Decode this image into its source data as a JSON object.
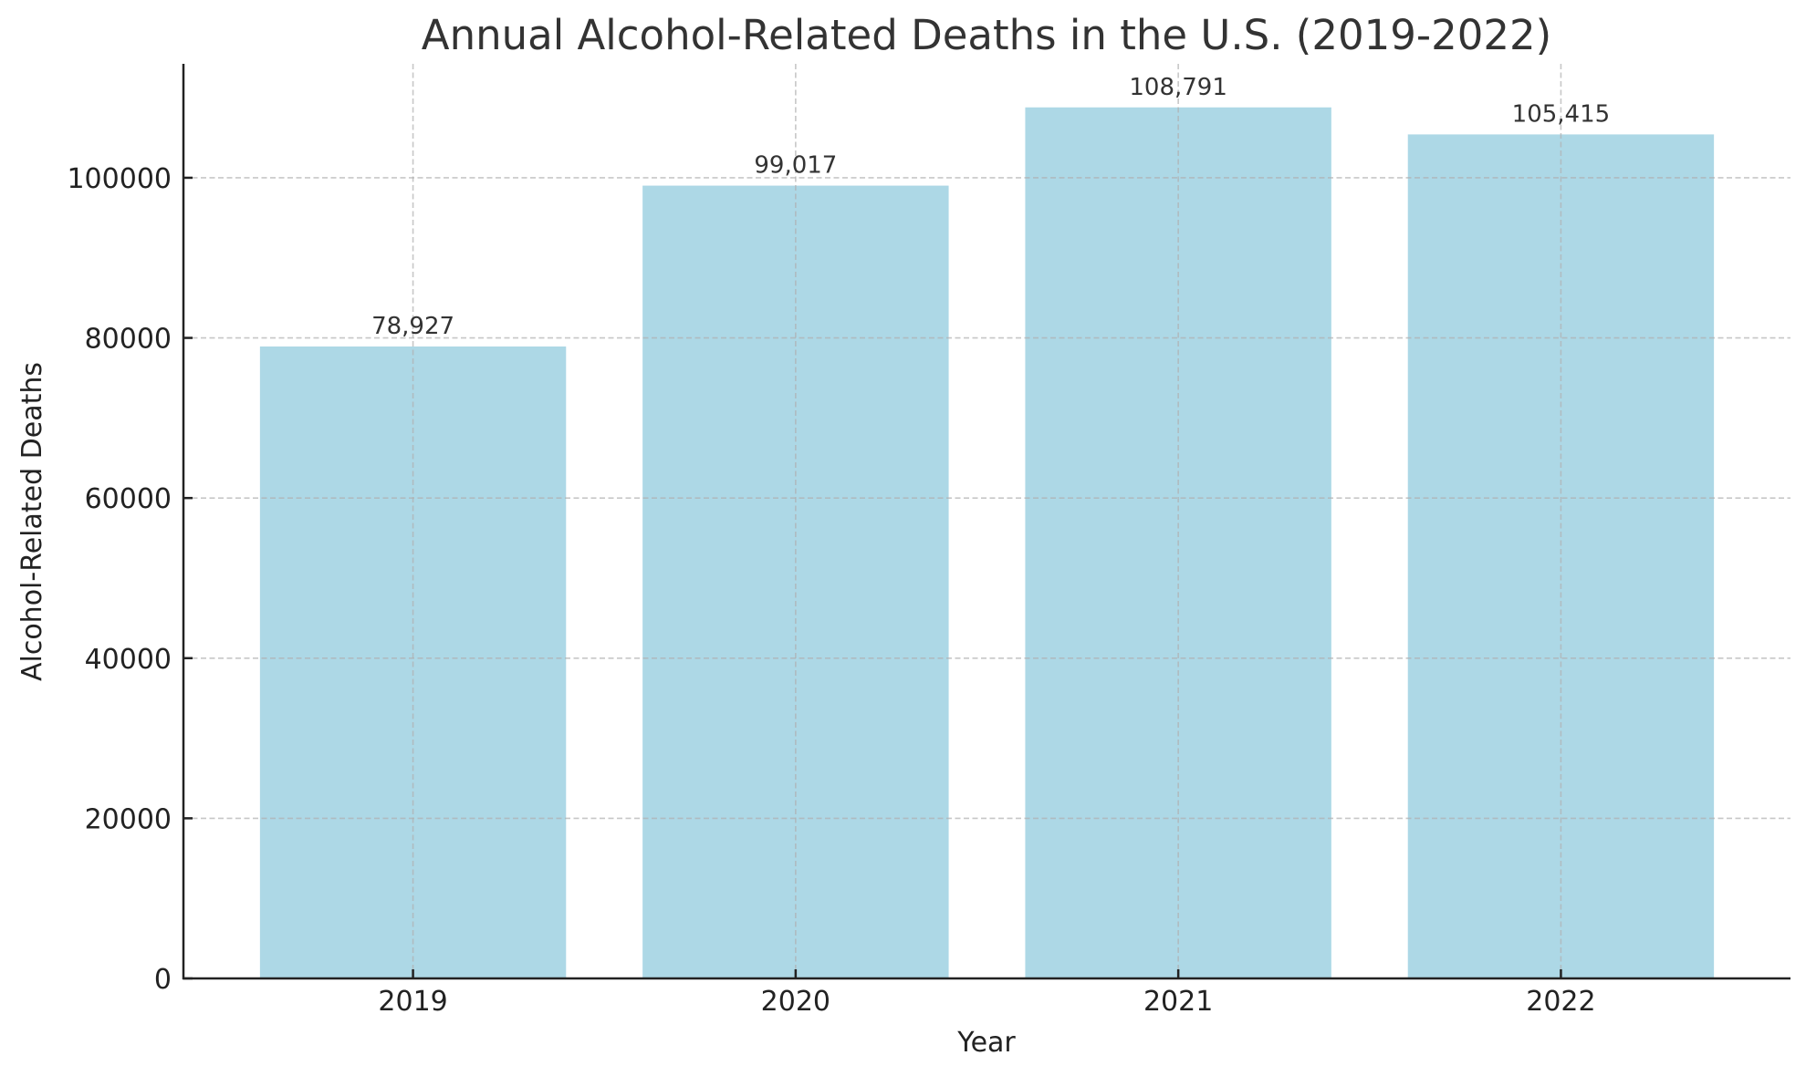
{
  "chart_data": {
    "type": "bar",
    "title": "Annual Alcohol-Related Deaths in the U.S. (2019-2022)",
    "xlabel": "Year",
    "ylabel": "Alcohol-Related Deaths",
    "categories": [
      "2019",
      "2020",
      "2021",
      "2022"
    ],
    "values": [
      78927,
      99017,
      108791,
      105415
    ],
    "value_labels": [
      "78,927",
      "99,017",
      "108,791",
      "105,415"
    ],
    "yticks": [
      0,
      20000,
      40000,
      60000,
      80000,
      100000
    ],
    "ytick_labels": [
      "0",
      "20000",
      "40000",
      "60000",
      "80000",
      "100000"
    ],
    "ylim": [
      0,
      114230
    ],
    "grid": true,
    "grid_style": "dashed",
    "legend": null,
    "colors": {
      "bar": "#ADD8E6",
      "grid": "#b0b0b0",
      "axis": "#222222",
      "title": "#333333",
      "value_label": "#333333"
    }
  }
}
